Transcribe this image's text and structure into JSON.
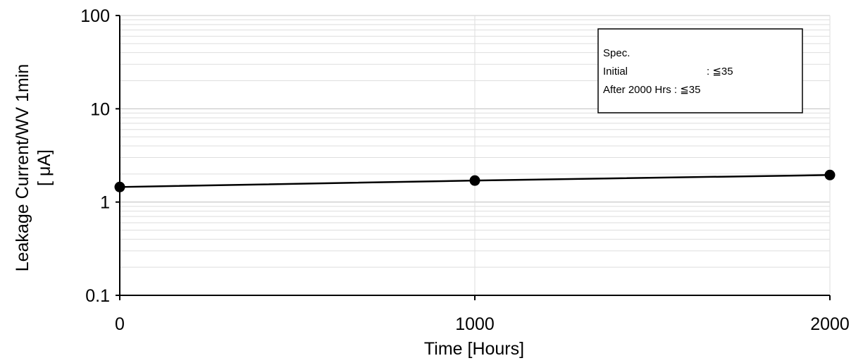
{
  "chart_data": {
    "type": "line",
    "x": [
      0,
      1000,
      2000
    ],
    "series": [
      {
        "values": [
          1.45,
          1.7,
          1.95
        ],
        "color": "#000000",
        "marker": "circle"
      }
    ],
    "xlabel": "Time [Hours]",
    "ylabel": [
      "Leakage Current/WV 1min",
      "[ μA]"
    ],
    "x_ticks": [
      "0",
      "1000",
      "2000"
    ],
    "y_ticks": [
      "0.1",
      "1",
      "10",
      "100"
    ],
    "xlim": [
      0,
      2000
    ],
    "ylim": [
      0.1,
      100
    ],
    "yscale": "log",
    "grid": true,
    "spec_box": {
      "lines": [
        "Spec.",
        "Initial",
        ": ≦35",
        "After 2000 Hrs : ≦35"
      ],
      "placement": "top-right"
    }
  }
}
